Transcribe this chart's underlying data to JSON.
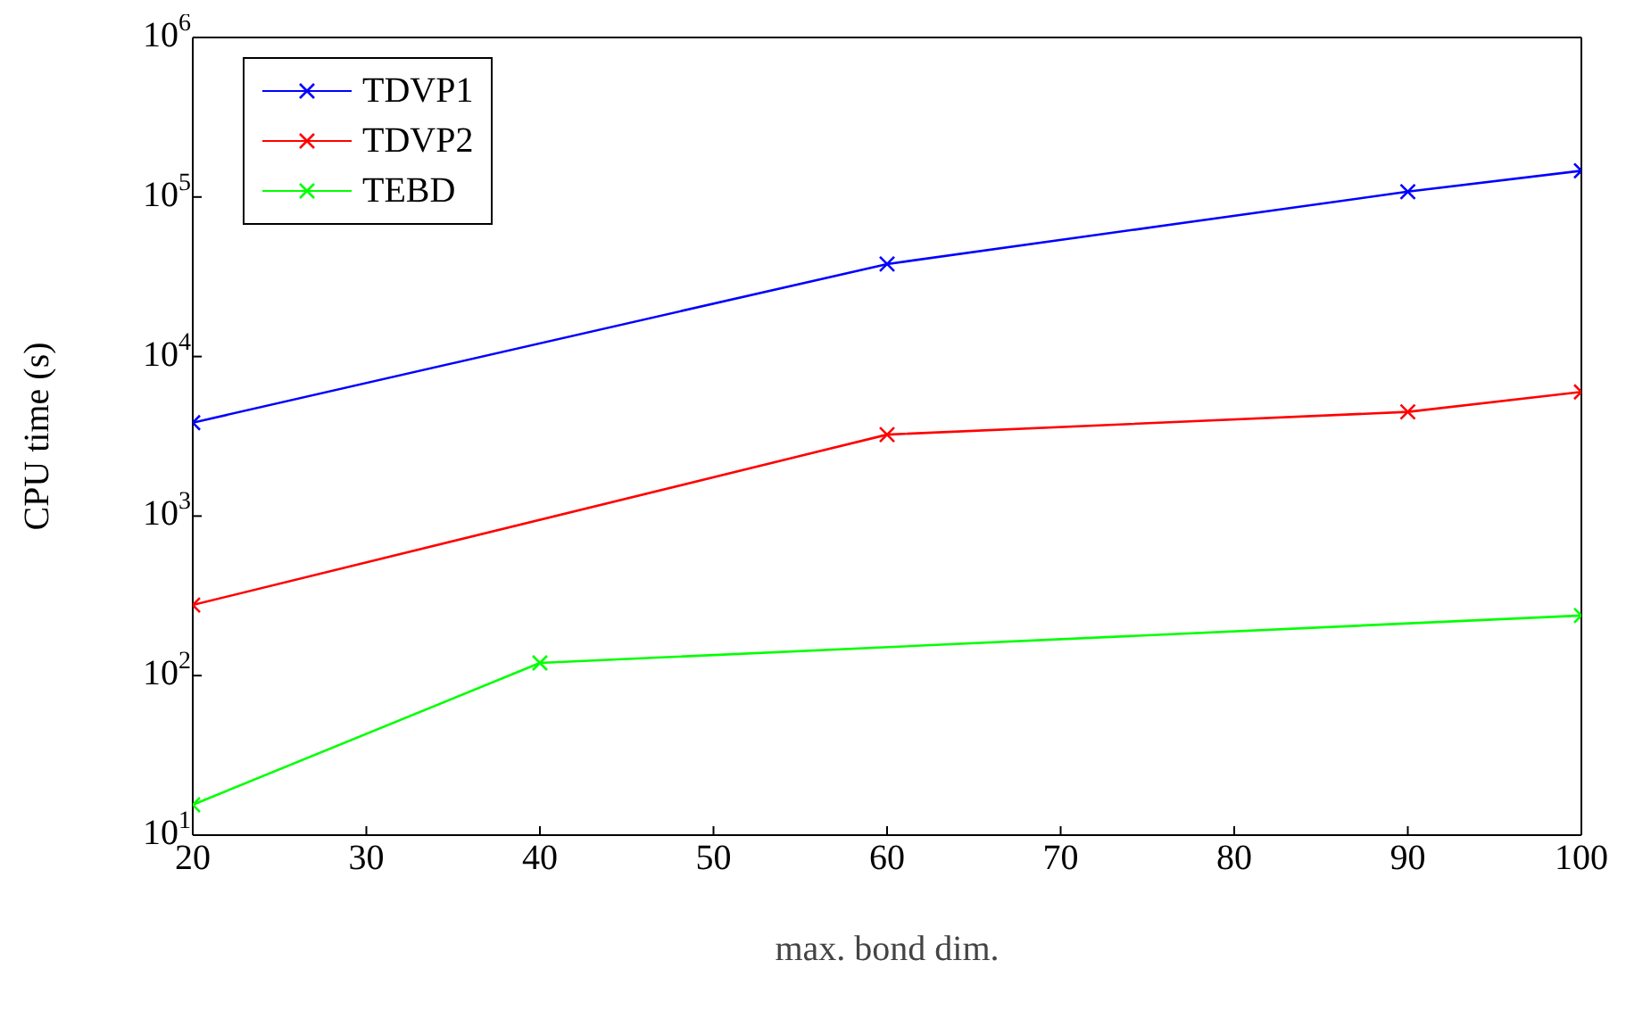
{
  "chart_data": {
    "type": "line",
    "xlabel": "max. bond dim.",
    "ylabel": "CPU time (s)",
    "log": "y",
    "xlim": [
      20,
      100
    ],
    "xticks": [
      20,
      30,
      40,
      50,
      60,
      70,
      80,
      90,
      100
    ],
    "ylim": [
      10,
      1000000
    ],
    "yticks": [
      {
        "value": 10,
        "label": "10$^{1}$"
      },
      {
        "value": 100,
        "label": "10$^{2}$"
      },
      {
        "value": 1000,
        "label": "10$^{3}$"
      },
      {
        "value": 10000,
        "label": "10$^{4}$"
      },
      {
        "value": 100000,
        "label": "10$^{5}$"
      },
      {
        "value": 1000000,
        "label": "10$^{6}$"
      }
    ],
    "grid": false,
    "legend": "top left",
    "marker": "cross",
    "line_style": "solid",
    "series": [
      {
        "name": "TDVP1",
        "color": "#0000ff",
        "x": [
          20,
          60,
          90,
          100
        ],
        "values": [
          3850,
          38000,
          108000,
          146000
        ]
      },
      {
        "name": "TDVP2",
        "color": "#ff0000",
        "x": [
          20,
          60,
          90,
          100
        ],
        "values": [
          277,
          3240,
          4500,
          6000
        ]
      },
      {
        "name": "TEBD",
        "color": "#00ff00",
        "x": [
          20,
          40,
          100
        ],
        "values": [
          15.5,
          120,
          238
        ]
      }
    ]
  }
}
